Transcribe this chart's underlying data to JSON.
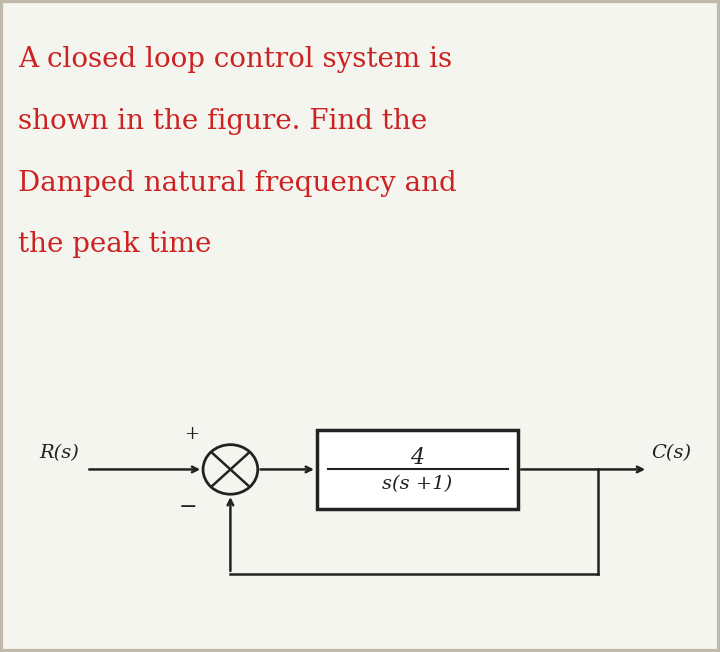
{
  "bg_color": "#f5f5f0",
  "border_color": "#c0b8a8",
  "text_color": "#cc2222",
  "diagram_color": "#222222",
  "title_lines": [
    "A closed loop control system is",
    "shown in the figure. Find the",
    "Damped natural frequency and",
    "the peak time"
  ],
  "title_fontsize": 20,
  "tf_numerator": "4",
  "tf_denominator": "s(s +1)",
  "rs_label": "R(s)",
  "cs_label": "C(s)",
  "plus_label": "+",
  "minus_label": "−"
}
